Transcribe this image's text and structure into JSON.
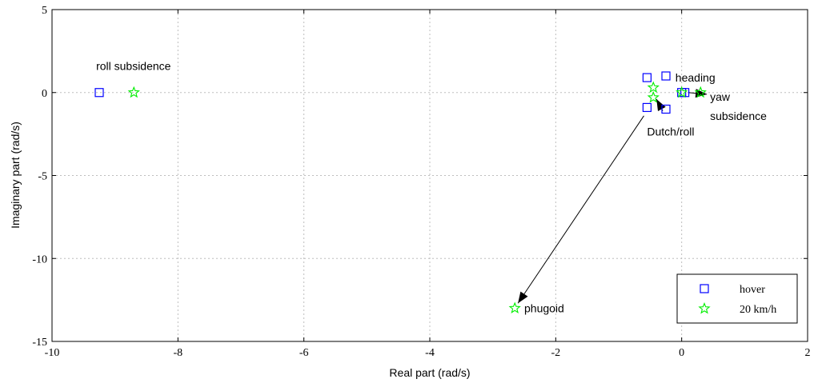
{
  "chart_data": {
    "type": "scatter",
    "title": "",
    "xlabel": "Real part (rad/s)",
    "ylabel": "Imaginary part (rad/s)",
    "xlim": [
      -10,
      2
    ],
    "ylim": [
      -15,
      5
    ],
    "xticks": [
      -10,
      -8,
      -6,
      -4,
      -2,
      0,
      2
    ],
    "yticks": [
      -15,
      -10,
      -5,
      0,
      5
    ],
    "grid": true,
    "legend_position": "bottom-right",
    "series": [
      {
        "name": "hover",
        "marker": "square",
        "color": "#0000ff",
        "points": [
          {
            "x": -9.25,
            "y": 0
          },
          {
            "x": -0.55,
            "y": 0.9
          },
          {
            "x": -0.55,
            "y": -0.9
          },
          {
            "x": -0.25,
            "y": 1.0
          },
          {
            "x": -0.25,
            "y": -1.0
          },
          {
            "x": 0.0,
            "y": 0
          },
          {
            "x": 0.05,
            "y": 0
          }
        ]
      },
      {
        "name": "20 km/h",
        "marker": "star",
        "color": "#00ee00",
        "points": [
          {
            "x": -8.7,
            "y": 0
          },
          {
            "x": -0.45,
            "y": 0.3
          },
          {
            "x": -0.45,
            "y": -0.3
          },
          {
            "x": 0.0,
            "y": 0
          },
          {
            "x": 0.3,
            "y": 0
          },
          {
            "x": -2.65,
            "y": -13.0
          }
        ]
      }
    ],
    "annotations": [
      {
        "text": "roll subsidence",
        "x": -9.3,
        "y": 1.6
      },
      {
        "text": "heading",
        "x": -0.1,
        "y": 0.9
      },
      {
        "text": "yaw",
        "x": 0.45,
        "y": -0.25
      },
      {
        "text": "subsidence",
        "x": 0.45,
        "y": -1.4
      },
      {
        "text": "Dutch/roll",
        "x": -0.55,
        "y": -2.35
      },
      {
        "text": "phugoid",
        "x": -2.5,
        "y": -13.0
      }
    ],
    "arrows": [
      {
        "from": [
          -0.6,
          -1.4
        ],
        "to": [
          -2.6,
          -12.7
        ]
      },
      {
        "from": [
          -0.3,
          -1.1
        ],
        "to": [
          -0.4,
          -0.4
        ]
      },
      {
        "from": [
          0.1,
          0.0
        ],
        "to": [
          0.4,
          -0.1
        ]
      }
    ]
  }
}
